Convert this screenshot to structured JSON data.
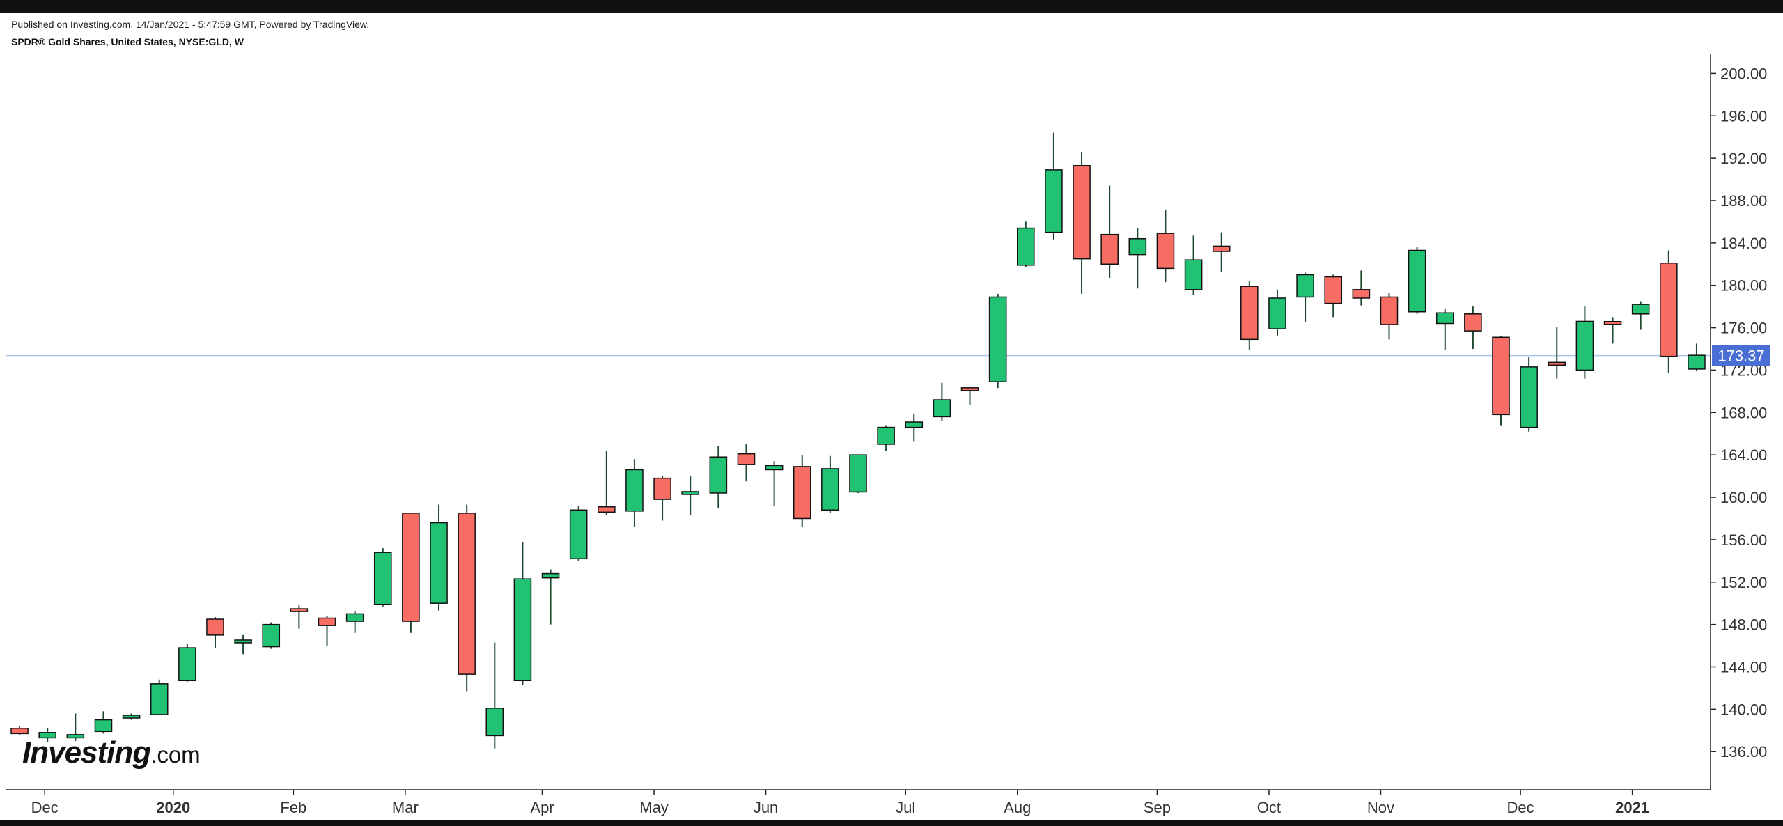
{
  "header": {
    "published": "Published on Investing.com, 14/Jan/2021 - 5:47:59 GMT, Powered by TradingView.",
    "symbol": "SPDR® Gold Shares, United States, NYSE:GLD, W"
  },
  "logo": {
    "main": "Investing",
    "suffix": ".com"
  },
  "last_price": {
    "label": "173.37",
    "value": 173.37,
    "color": "#4a6fd4"
  },
  "colors": {
    "up": "#22c274",
    "down": "#f76c63",
    "wick": "#1d4a2e",
    "outline": "#111111",
    "price_line": "#a9c6e8"
  },
  "chart_data": {
    "type": "candlestick",
    "interval": "W",
    "ylim": [
      132.4,
      201.8
    ],
    "ytick_labels": [
      "136.00",
      "140.00",
      "144.00",
      "148.00",
      "152.00",
      "156.00",
      "160.00",
      "164.00",
      "168.00",
      "172.00",
      "176.00",
      "180.00",
      "184.00",
      "188.00",
      "192.00",
      "196.00",
      "200.00"
    ],
    "xtick_labels": [
      {
        "label": "Dec",
        "index": 1.4,
        "bold": false
      },
      {
        "label": "2020",
        "index": 6.0,
        "bold": true
      },
      {
        "label": "Feb",
        "index": 10.3,
        "bold": false
      },
      {
        "label": "Mar",
        "index": 14.3,
        "bold": false
      },
      {
        "label": "Apr",
        "index": 19.2,
        "bold": false
      },
      {
        "label": "May",
        "index": 23.2,
        "bold": false
      },
      {
        "label": "Jun",
        "index": 27.2,
        "bold": false
      },
      {
        "label": "Jul",
        "index": 32.2,
        "bold": false
      },
      {
        "label": "Aug",
        "index": 36.2,
        "bold": false
      },
      {
        "label": "Sep",
        "index": 41.2,
        "bold": false
      },
      {
        "label": "Oct",
        "index": 45.2,
        "bold": false
      },
      {
        "label": "Nov",
        "index": 49.2,
        "bold": false
      },
      {
        "label": "Dec",
        "index": 54.2,
        "bold": false
      },
      {
        "label": "2021",
        "index": 58.2,
        "bold": true
      }
    ],
    "candles": [
      {
        "o": 138.2,
        "h": 138.4,
        "l": 137.6,
        "c": 137.7
      },
      {
        "o": 137.3,
        "h": 138.2,
        "l": 136.9,
        "c": 137.8
      },
      {
        "o": 137.3,
        "h": 139.6,
        "l": 137.0,
        "c": 137.6
      },
      {
        "o": 137.9,
        "h": 139.8,
        "l": 137.7,
        "c": 139.0
      },
      {
        "o": 139.2,
        "h": 139.6,
        "l": 139.0,
        "c": 139.4
      },
      {
        "o": 139.5,
        "h": 142.8,
        "l": 139.5,
        "c": 142.4
      },
      {
        "o": 142.7,
        "h": 146.2,
        "l": 142.6,
        "c": 145.8
      },
      {
        "o": 148.5,
        "h": 148.7,
        "l": 145.8,
        "c": 147.0
      },
      {
        "o": 146.3,
        "h": 147.0,
        "l": 145.2,
        "c": 146.5
      },
      {
        "o": 145.9,
        "h": 148.2,
        "l": 145.7,
        "c": 148.0
      },
      {
        "o": 149.4,
        "h": 149.8,
        "l": 147.6,
        "c": 149.3
      },
      {
        "o": 148.6,
        "h": 148.8,
        "l": 146.0,
        "c": 147.9
      },
      {
        "o": 148.3,
        "h": 149.3,
        "l": 147.2,
        "c": 149.0
      },
      {
        "o": 149.9,
        "h": 155.2,
        "l": 149.7,
        "c": 154.8
      },
      {
        "o": 158.5,
        "h": 158.5,
        "l": 147.2,
        "c": 148.3
      },
      {
        "o": 150.0,
        "h": 159.3,
        "l": 149.3,
        "c": 157.6
      },
      {
        "o": 158.5,
        "h": 159.3,
        "l": 141.7,
        "c": 143.3
      },
      {
        "o": 137.5,
        "h": 146.3,
        "l": 136.3,
        "c": 140.1
      },
      {
        "o": 142.7,
        "h": 155.8,
        "l": 142.3,
        "c": 152.3
      },
      {
        "o": 152.4,
        "h": 153.2,
        "l": 148.0,
        "c": 152.8
      },
      {
        "o": 154.2,
        "h": 159.2,
        "l": 154.0,
        "c": 158.8
      },
      {
        "o": 159.1,
        "h": 164.4,
        "l": 158.3,
        "c": 158.6
      },
      {
        "o": 158.7,
        "h": 163.6,
        "l": 157.2,
        "c": 162.6
      },
      {
        "o": 161.8,
        "h": 162.0,
        "l": 157.8,
        "c": 159.8
      },
      {
        "o": 160.3,
        "h": 162.0,
        "l": 158.3,
        "c": 160.5
      },
      {
        "o": 160.4,
        "h": 164.8,
        "l": 159.0,
        "c": 163.8
      },
      {
        "o": 164.1,
        "h": 165.0,
        "l": 161.5,
        "c": 163.1
      },
      {
        "o": 162.6,
        "h": 163.4,
        "l": 159.2,
        "c": 163.0
      },
      {
        "o": 162.9,
        "h": 164.0,
        "l": 157.2,
        "c": 158.0
      },
      {
        "o": 158.8,
        "h": 163.9,
        "l": 158.5,
        "c": 162.7
      },
      {
        "o": 160.5,
        "h": 164.0,
        "l": 160.4,
        "c": 164.0
      },
      {
        "o": 165.0,
        "h": 166.8,
        "l": 164.4,
        "c": 166.6
      },
      {
        "o": 166.6,
        "h": 167.9,
        "l": 165.3,
        "c": 167.1
      },
      {
        "o": 167.6,
        "h": 170.8,
        "l": 167.2,
        "c": 169.2
      },
      {
        "o": 170.3,
        "h": 170.4,
        "l": 168.7,
        "c": 170.1
      },
      {
        "o": 170.9,
        "h": 179.2,
        "l": 170.3,
        "c": 178.9
      },
      {
        "o": 181.9,
        "h": 186.0,
        "l": 181.7,
        "c": 185.4
      },
      {
        "o": 185.0,
        "h": 194.4,
        "l": 184.3,
        "c": 190.9
      },
      {
        "o": 191.3,
        "h": 192.6,
        "l": 179.2,
        "c": 182.5
      },
      {
        "o": 184.8,
        "h": 189.4,
        "l": 180.7,
        "c": 182.0
      },
      {
        "o": 182.9,
        "h": 185.4,
        "l": 179.7,
        "c": 184.4
      },
      {
        "o": 184.9,
        "h": 187.1,
        "l": 180.3,
        "c": 181.6
      },
      {
        "o": 179.6,
        "h": 184.7,
        "l": 179.1,
        "c": 182.4
      },
      {
        "o": 183.7,
        "h": 185.0,
        "l": 181.3,
        "c": 183.2
      },
      {
        "o": 179.9,
        "h": 180.4,
        "l": 173.9,
        "c": 174.9
      },
      {
        "o": 175.9,
        "h": 179.6,
        "l": 175.2,
        "c": 178.8
      },
      {
        "o": 178.9,
        "h": 181.2,
        "l": 176.5,
        "c": 181.0
      },
      {
        "o": 180.8,
        "h": 181.0,
        "l": 177.0,
        "c": 178.3
      },
      {
        "o": 179.6,
        "h": 181.4,
        "l": 178.1,
        "c": 178.8
      },
      {
        "o": 178.9,
        "h": 179.3,
        "l": 174.9,
        "c": 176.3
      },
      {
        "o": 177.5,
        "h": 183.6,
        "l": 177.3,
        "c": 183.3
      },
      {
        "o": 176.4,
        "h": 177.8,
        "l": 173.9,
        "c": 177.4
      },
      {
        "o": 177.3,
        "h": 178.0,
        "l": 174.0,
        "c": 175.7
      },
      {
        "o": 175.1,
        "h": 175.2,
        "l": 166.8,
        "c": 167.8
      },
      {
        "o": 166.6,
        "h": 173.2,
        "l": 166.2,
        "c": 172.3
      },
      {
        "o": 172.7,
        "h": 176.1,
        "l": 171.2,
        "c": 172.5
      },
      {
        "o": 172.0,
        "h": 178.0,
        "l": 171.2,
        "c": 176.6
      },
      {
        "o": 176.5,
        "h": 177.0,
        "l": 174.5,
        "c": 176.4
      },
      {
        "o": 177.3,
        "h": 178.5,
        "l": 175.8,
        "c": 178.2
      },
      {
        "o": 182.1,
        "h": 183.3,
        "l": 171.7,
        "c": 173.3
      },
      {
        "o": 172.1,
        "h": 174.5,
        "l": 171.9,
        "c": 173.4
      }
    ]
  }
}
